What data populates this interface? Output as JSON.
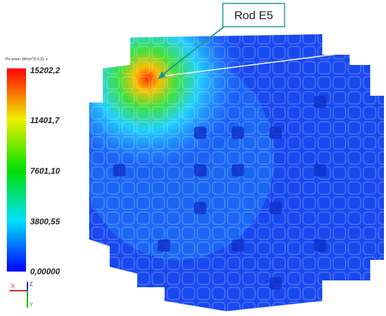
{
  "colorbar": {
    "title": "Pin power (W/cm^3) 0.22, s",
    "ticks": [
      "15202,2",
      "11401,7",
      "7601,10",
      "3800,55",
      "0,00000"
    ]
  },
  "callout": {
    "label": "Rod E5"
  },
  "axes": {
    "x": "X",
    "y": "Y",
    "z": "Z"
  }
}
